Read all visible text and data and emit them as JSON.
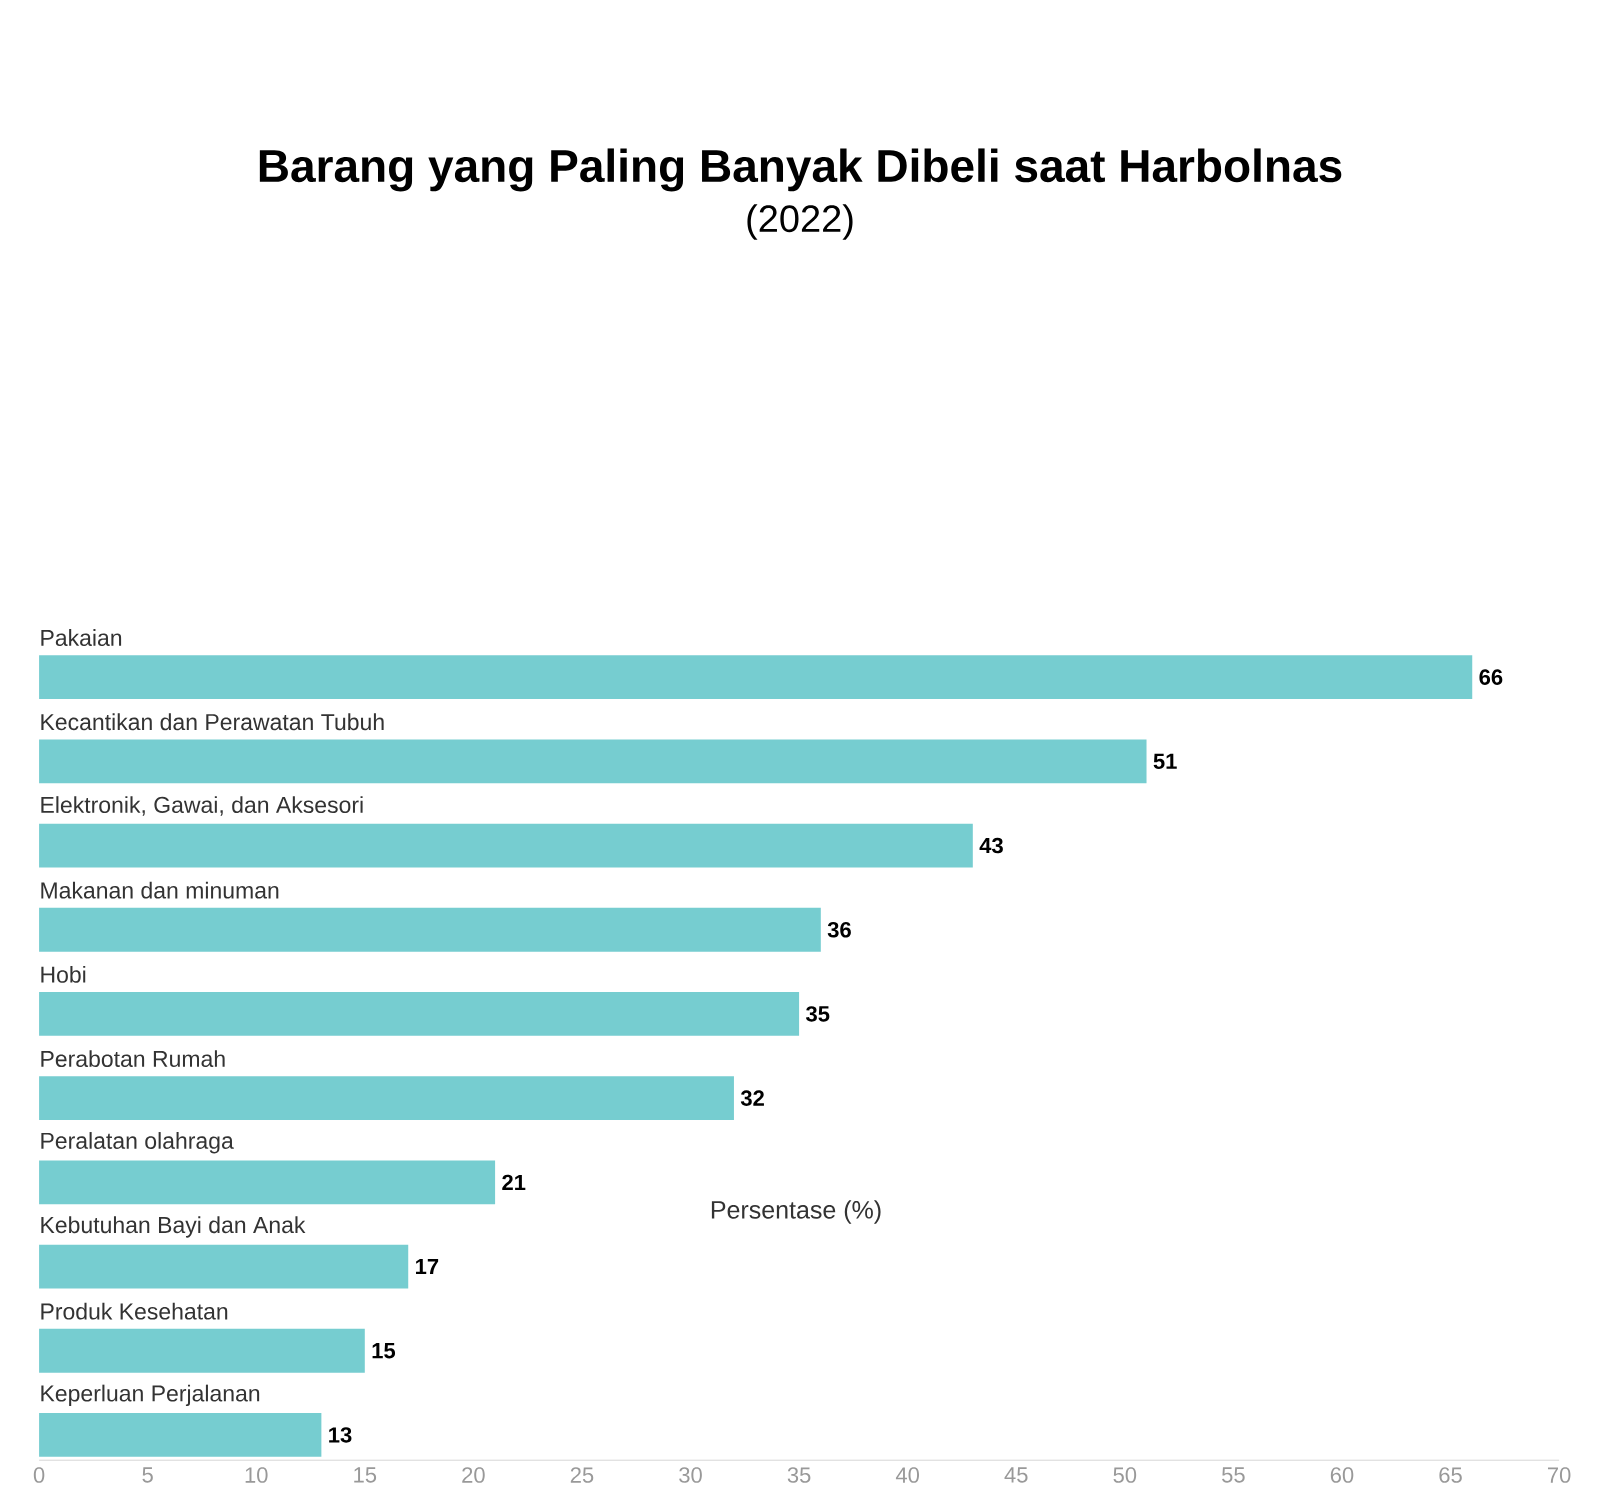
{
  "chart_data": {
    "type": "bar",
    "orientation": "horizontal",
    "title": "Barang yang Paling Banyak Dibeli saat Harbolnas",
    "subtitle": "(2022)",
    "xlabel": "Persentase (%)",
    "categories": [
      "Pakaian",
      "Kecantikan dan Perawatan Tubuh",
      "Elektronik, Gawai, dan Aksesori",
      "Makanan dan minuman",
      "Hobi",
      "Perabotan Rumah",
      "Peralatan olahraga",
      "Kebutuhan Bayi dan Anak",
      "Produk Kesehatan",
      "Keperluan Perjalanan"
    ],
    "values": [
      66,
      51,
      43,
      36,
      35,
      32,
      21,
      17,
      15,
      13
    ],
    "color": "#76cdd0",
    "data_labels": true,
    "xlim": [
      0,
      70
    ],
    "xticks": [
      0,
      5,
      10,
      15,
      20,
      25,
      30,
      35,
      40,
      45,
      50,
      55,
      60,
      65,
      70
    ]
  }
}
